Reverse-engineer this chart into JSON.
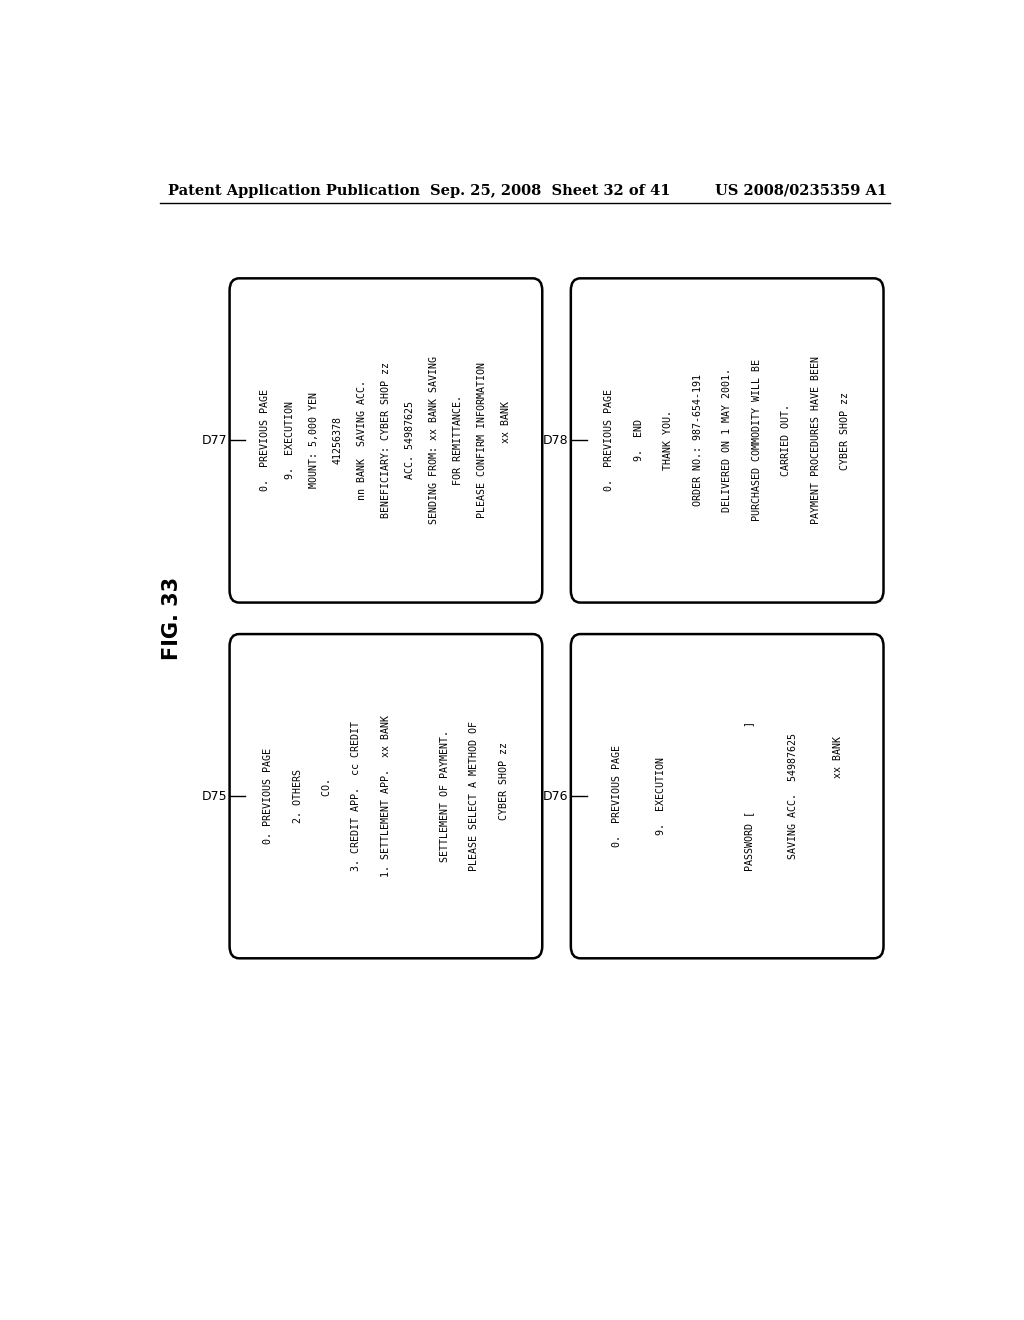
{
  "header_left": "Patent Application Publication",
  "header_mid": "Sep. 25, 2008  Sheet 32 of 41",
  "header_right": "US 2008/0235359 A1",
  "fig_label": "FIG. 33",
  "bg_color": "#ffffff",
  "boxes": [
    {
      "id": "D77",
      "label": "D77",
      "label_side": "top",
      "col": 0,
      "row": 0,
      "lines": [
        "      xx BANK",
        "PLEASE CONFIRM INFORMATION",
        "FOR REMITTANCE.",
        "SENDING FROM: xx BANK SAVING",
        "ACC. 54987625",
        "BENEFICIARY: CYBER SHOP zz",
        "nn BANK  SAVING ACC.",
        "41256378",
        "MOUNT: 5,000 YEN",
        "9.  EXECUTION",
        "0.  PREVIOUS PAGE"
      ]
    },
    {
      "id": "D78",
      "label": "D78",
      "label_side": "top",
      "col": 1,
      "row": 0,
      "lines": [
        "   CYBER SHOP zz",
        "PAYMENT PROCEDURES HAVE BEEN",
        "CARRIED OUT.",
        "PURCHASED COMMODITY WILL BE",
        "DELIVERED ON 1 MAY 2001.",
        "ORDER NO.: 987-654-191",
        "THANK YOU.",
        "9.  END",
        "0.  PREVIOUS PAGE"
      ]
    },
    {
      "id": "D75",
      "label": "D75",
      "label_side": "bottom",
      "col": 0,
      "row": 1,
      "lines": [
        "     CYBER SHOP zz",
        "PLEASE SELECT A METHOD OF",
        "SETTLEMENT OF PAYMENT.",
        "",
        "1. SETTLEMENT APP.  xx BANK",
        "3. CREDIT APP.  cc CREDIT",
        "   CO.",
        "2. OTHERS",
        "0. PREVIOUS PAGE"
      ]
    },
    {
      "id": "D76",
      "label": "D76",
      "label_side": "bottom",
      "col": 1,
      "row": 1,
      "lines": [
        "             xx BANK",
        "SAVING ACC.  54987625",
        "PASSWORD [              ]",
        "",
        "9.  EXECUTION",
        "0.  PREVIOUS PAGE"
      ]
    }
  ]
}
